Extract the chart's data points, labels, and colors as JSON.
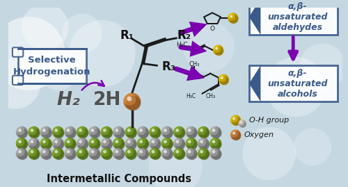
{
  "title": "Intermetallic Compounds",
  "bg_top": "#c5d8e2",
  "bg_bottom": "#b0c8d5",
  "label_selective_hydro": "Selective\nHydrogenation",
  "label_h2": "H₂",
  "label_2h": "2H",
  "label_r1": "R₁",
  "label_r2": "R₂",
  "label_r3": "R₃",
  "label_aldehydes": "α,β-\nunsaturated\naldehydes",
  "label_alcohols": "α,β-\nunsaturated\nalcohols",
  "label_oh": "O-H group",
  "label_oxy": "Oxygen",
  "arrow_color": "#7B00B0",
  "box_color": "#3a5a8a",
  "gold_color": "#C8A000",
  "copper_color": "#B87333",
  "green_color": "#6B8E23",
  "silver_color": "#909090",
  "silver_hi": "#d8d8d8",
  "green_hi": "#8aaa40"
}
